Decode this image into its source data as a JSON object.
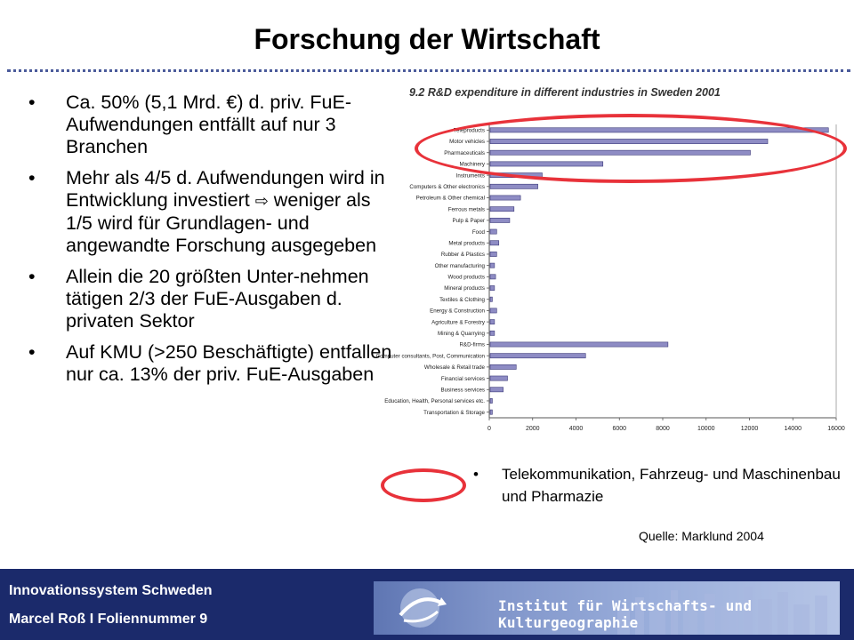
{
  "title": "Forschung der Wirtschaft",
  "bullets": [
    "Ca. 50% (5,1 Mrd. €) d. priv. FuE-Aufwendungen entfällt auf nur 3 Branchen",
    "Mehr als 4/5 d. Aufwendungen wird in Entwicklung investiert",
    "weniger als 1/5 wird für Grundlagen- und angewandte Forschung ausgegeben",
    "Allein die 20 größten Unter-nehmen tätigen 2/3 der FuE-Ausgaben d. privaten Sektor",
    "Auf KMU (>250 Beschäftigte) entfallen nur ca. 13% der priv. FuE-Ausgaben"
  ],
  "bullet_symbol": "•",
  "arrow_symbol": "⇨",
  "note": "Telekommunikation, Fahrzeug- und Maschinenbau und Pharmazie",
  "source": "Quelle: Marklund 2004",
  "footer": {
    "line1": "Innovationssystem Schweden",
    "line2": "Marcel Roß I Foliennummer 9",
    "banner_text": "Institut für Wirtschafts- und Kulturgeographie"
  },
  "colors": {
    "highlight": "#e8323a",
    "footer_bg": "#1b2a6b",
    "bar_fill": "#8e8cc4"
  },
  "chart_data": {
    "type": "bar",
    "orientation": "horizontal",
    "title": "9.2 R&D expenditure in different industries in Sweden 2001",
    "categories": [
      "Teleproducts",
      "Motor vehicles",
      "Pharmaceuticals",
      "Machinery",
      "Instruments",
      "Computers & Other electronics",
      "Petroleum & Other chemical",
      "Ferrous metals",
      "Pulp & Paper",
      "Food",
      "Metal products",
      "Rubber & Plastics",
      "Other manufacturing",
      "Wood products",
      "Mineral products",
      "Textiles & Clothing",
      "Energy & Construction",
      "Agriculture & Forestry",
      "Mining & Quarrying",
      "R&D-firms",
      "Computer consultants, Post, Communication",
      "Wholesale & Retail trade",
      "Financial services",
      "Business services",
      "Education, Health, Personal services etc.",
      "Transportation & Storage"
    ],
    "values": [
      15600,
      12800,
      12000,
      5200,
      2400,
      2200,
      1400,
      1100,
      900,
      300,
      400,
      300,
      200,
      250,
      200,
      100,
      300,
      200,
      200,
      8200,
      4400,
      1200,
      800,
      600,
      100,
      100
    ],
    "xlim": [
      0,
      16000
    ],
    "xticks": [
      "0",
      "2000",
      "4000",
      "6000",
      "8000",
      "10000",
      "12000",
      "14000",
      "16000"
    ],
    "grid": false
  }
}
